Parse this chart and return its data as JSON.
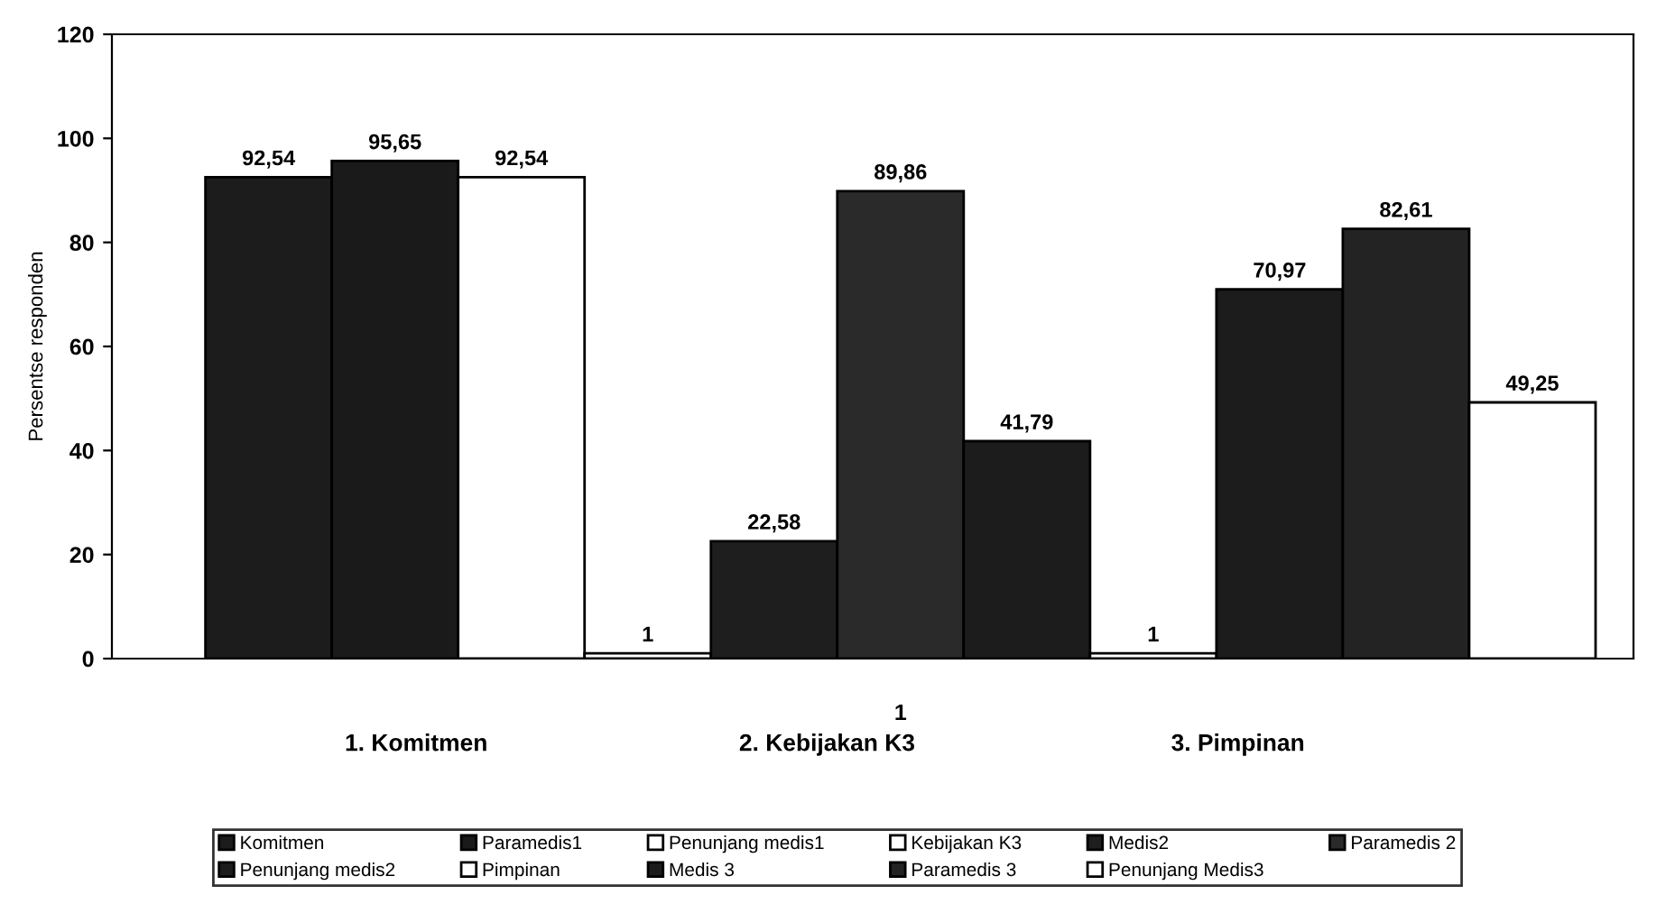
{
  "chart_data": {
    "type": "bar",
    "ylabel": "Persentse responden",
    "categories": [
      "1"
    ],
    "series": [
      {
        "name": "Komitmen",
        "color": "#1c1c1c",
        "values": [
          92.54
        ],
        "value_labels": [
          "92,54"
        ]
      },
      {
        "name": "Paramedis1",
        "color": "#1a1a1a",
        "values": [
          95.65
        ],
        "value_labels": [
          "95,65"
        ]
      },
      {
        "name": "Penunjang medis1",
        "color": "#ffffff",
        "values": [
          92.54
        ],
        "value_labels": [
          "92,54"
        ]
      },
      {
        "name": "Kebijakan K3",
        "color": "#ffffff",
        "values": [
          1
        ],
        "value_labels": [
          "1"
        ]
      },
      {
        "name": "Medis2",
        "color": "#1e1e1e",
        "values": [
          22.58
        ],
        "value_labels": [
          "22,58"
        ]
      },
      {
        "name": "Paramedis 2",
        "color": "#2a2a2a",
        "values": [
          89.86
        ],
        "value_labels": [
          "89,86"
        ]
      },
      {
        "name": "Penunjang medis2",
        "color": "#1c1c1c",
        "values": [
          41.79
        ],
        "value_labels": [
          "41,79"
        ]
      },
      {
        "name": "Pimpinan",
        "color": "#ffffff",
        "values": [
          1
        ],
        "value_labels": [
          "1"
        ]
      },
      {
        "name": "Medis 3",
        "color": "#1c1c1c",
        "values": [
          70.97
        ],
        "value_labels": [
          "70,97"
        ]
      },
      {
        "name": "Paramedis 3",
        "color": "#232323",
        "values": [
          82.61
        ],
        "value_labels": [
          "82,61"
        ]
      },
      {
        "name": "Penunjang Medis3",
        "color": "#ffffff",
        "values": [
          49.25
        ],
        "value_labels": [
          "49,25"
        ]
      }
    ],
    "annotations": [
      "1. Komitmen",
      "2. Kebijakan K3",
      "3. Pimpinan"
    ],
    "ylim": [
      0,
      120
    ],
    "yticks": [
      0,
      20,
      40,
      60,
      80,
      100,
      120
    ],
    "grid": false,
    "legend": "bottom"
  }
}
